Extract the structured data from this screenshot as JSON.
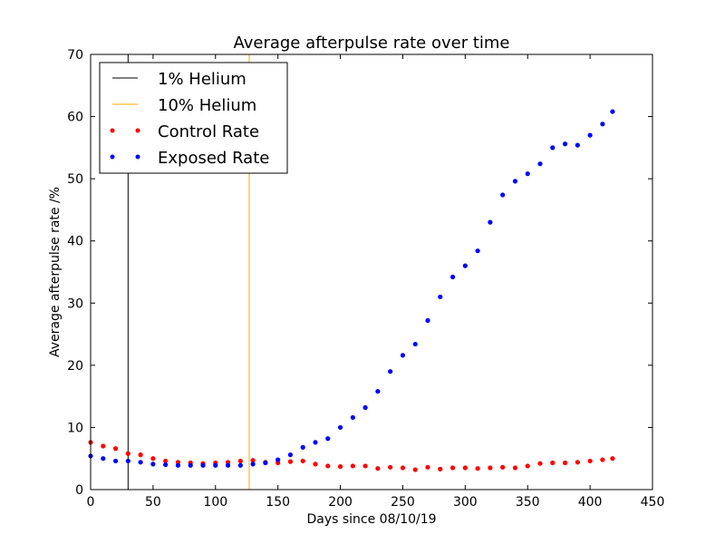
{
  "chart_data": {
    "type": "scatter",
    "title": "Average afterpulse rate over time",
    "xlabel": "Days since 08/10/19",
    "ylabel": "Average afterpulse rate /%",
    "xlim": [
      0,
      450
    ],
    "ylim": [
      0,
      70
    ],
    "xticks": [
      0,
      50,
      100,
      150,
      200,
      250,
      300,
      350,
      400,
      450
    ],
    "yticks": [
      0,
      10,
      20,
      30,
      40,
      50,
      60,
      70
    ],
    "grid": false,
    "legend_position": "top-left",
    "vlines": [
      {
        "name": "1% Helium",
        "x": 30,
        "color": "#000000"
      },
      {
        "name": "10% Helium",
        "x": 127,
        "color": "#ffa500"
      }
    ],
    "series": [
      {
        "name": "Control Rate",
        "color": "#ff0000",
        "x": [
          0,
          10,
          20,
          30,
          40,
          50,
          60,
          70,
          80,
          90,
          100,
          110,
          120,
          130,
          140,
          150,
          160,
          170,
          180,
          190,
          200,
          210,
          220,
          230,
          240,
          250,
          260,
          270,
          280,
          290,
          300,
          310,
          320,
          330,
          340,
          350,
          360,
          370,
          380,
          390,
          400,
          410,
          418
        ],
        "y": [
          7.6,
          7.0,
          6.6,
          5.8,
          5.6,
          5.0,
          4.6,
          4.4,
          4.3,
          4.2,
          4.3,
          4.4,
          4.6,
          4.7,
          4.4,
          4.3,
          4.5,
          4.6,
          4.1,
          3.8,
          3.7,
          3.8,
          3.8,
          3.4,
          3.6,
          3.5,
          3.2,
          3.6,
          3.3,
          3.5,
          3.5,
          3.4,
          3.5,
          3.6,
          3.5,
          3.8,
          4.2,
          4.3,
          4.3,
          4.4,
          4.6,
          4.8,
          5.0
        ]
      },
      {
        "name": "Exposed Rate",
        "color": "#0000ff",
        "x": [
          0,
          10,
          20,
          30,
          40,
          50,
          60,
          70,
          80,
          90,
          100,
          110,
          120,
          130,
          140,
          150,
          160,
          170,
          180,
          190,
          200,
          210,
          220,
          230,
          240,
          250,
          260,
          270,
          280,
          290,
          300,
          310,
          320,
          330,
          340,
          350,
          360,
          370,
          380,
          390,
          400,
          410,
          418
        ],
        "y": [
          5.4,
          5.0,
          4.6,
          4.6,
          4.4,
          4.1,
          4.0,
          3.9,
          3.9,
          3.9,
          3.9,
          3.9,
          3.9,
          4.1,
          4.3,
          4.8,
          5.6,
          6.8,
          7.6,
          8.2,
          10.0,
          11.6,
          13.2,
          15.8,
          19.0,
          21.6,
          23.4,
          27.2,
          31.0,
          34.2,
          36.0,
          38.4,
          43.0,
          47.4,
          49.6,
          50.8,
          52.4,
          55.0,
          55.6,
          55.4,
          57.0,
          58.8,
          60.8
        ]
      }
    ]
  }
}
